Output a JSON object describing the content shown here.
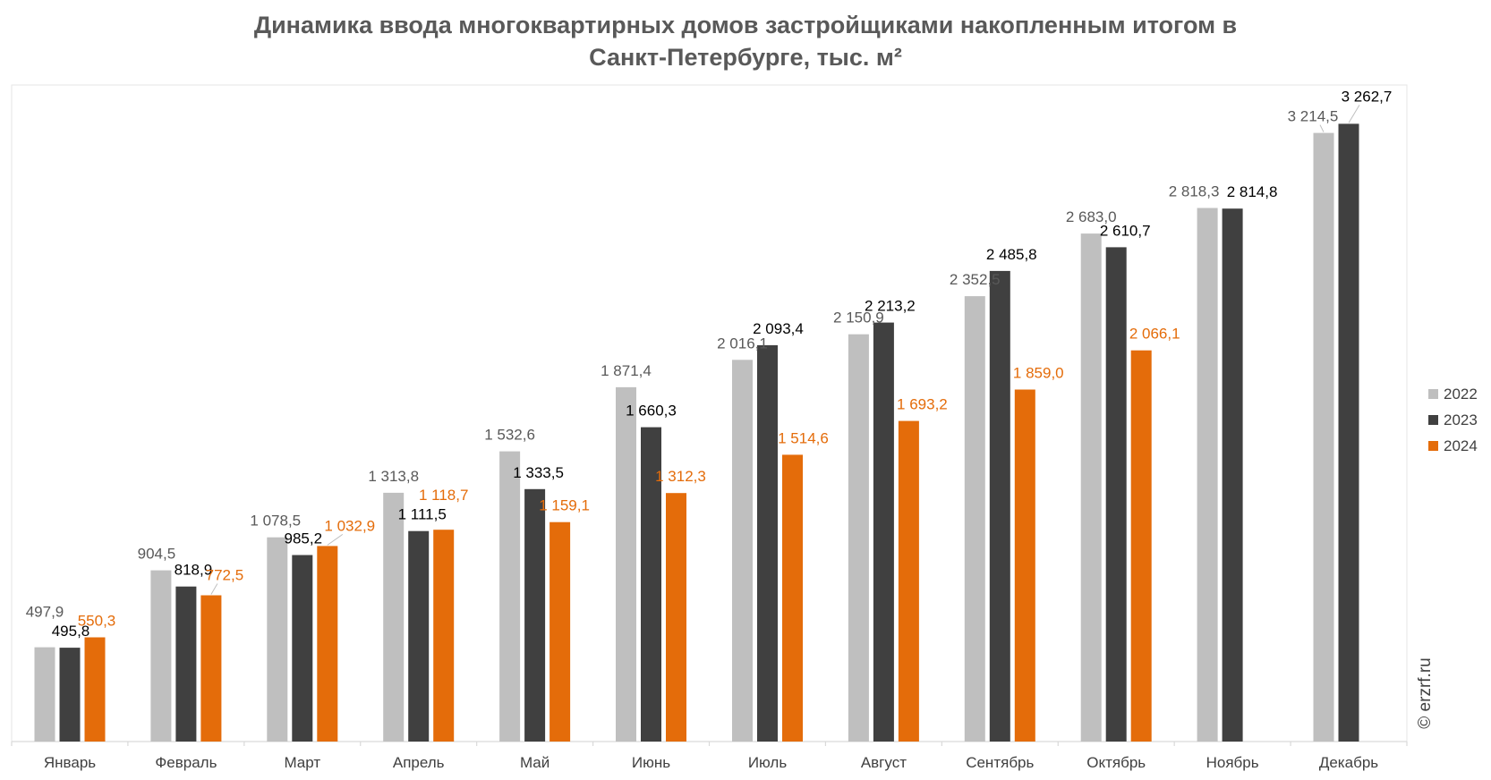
{
  "chart_data": {
    "type": "bar",
    "title_line1": "Динамика ввода многоквартирных домов застройщиками накопленным итогом в",
    "title_line2": "Санкт-Петербурге, тыс. м²",
    "credit": "© erzrf.ru",
    "categories": [
      "Январь",
      "Февраль",
      "Март",
      "Апрель",
      "Май",
      "Июнь",
      "Июль",
      "Август",
      "Сентябрь",
      "Октябрь",
      "Ноябрь",
      "Декабрь"
    ],
    "series": [
      {
        "name": "2022",
        "color": "#bfbfbf",
        "label_color": "#595959",
        "values": [
          497.9,
          904.5,
          1078.5,
          1313.8,
          1532.6,
          1871.4,
          2016.1,
          2150.9,
          2352.5,
          2683.0,
          2818.3,
          3214.5
        ],
        "labels": [
          "497,9",
          "904,5",
          "1 078,5",
          "1 313,8",
          "1 532,6",
          "1 871,4",
          "2 016,1",
          "2 150,9",
          "2 352,5",
          "2 683,0",
          "2 818,3",
          "3 214,5"
        ]
      },
      {
        "name": "2023",
        "color": "#404040",
        "label_color": "#000000",
        "values": [
          495.8,
          818.9,
          985.2,
          1111.5,
          1333.5,
          1660.3,
          2093.4,
          2213.2,
          2485.8,
          2610.7,
          2814.8,
          3262.7
        ],
        "labels": [
          "495,8",
          "818,9",
          "985,2",
          "1 111,5",
          "1 333,5",
          "1 660,3",
          "2 093,4",
          "2 213,2",
          "2 485,8",
          "2 610,7",
          "2 814,8",
          "3 262,7"
        ]
      },
      {
        "name": "2024",
        "color": "#e46c0a",
        "label_color": "#e46c0a",
        "values": [
          550.3,
          772.5,
          1032.9,
          1118.7,
          1159.1,
          1312.3,
          1514.6,
          1693.2,
          1859.0,
          2066.1,
          null,
          null
        ],
        "labels": [
          "550,3",
          "772,5",
          "1 032,9",
          "1 118,7",
          "1 159,1",
          "1 312,3",
          "1 514,6",
          "1 693,2",
          "1 859,0",
          "2 066,1",
          "",
          ""
        ]
      }
    ],
    "ylim": [
      0,
      3500
    ],
    "legend_position": "right",
    "grid": false
  }
}
